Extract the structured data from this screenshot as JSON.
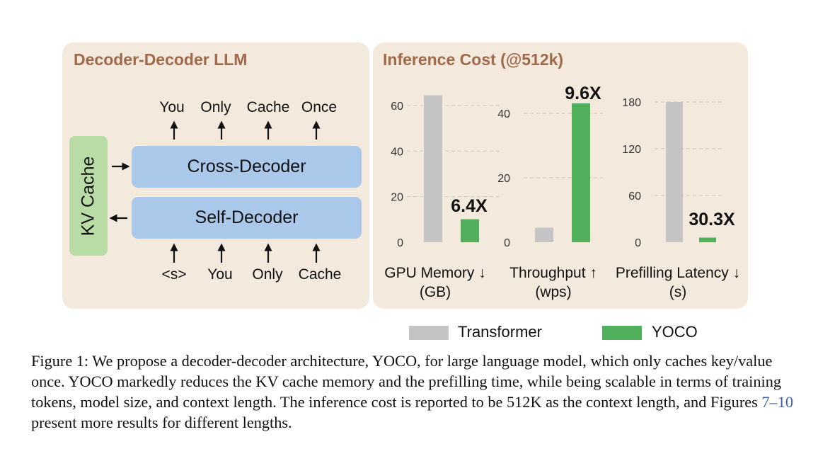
{
  "left_panel": {
    "title": "Decoder-Decoder LLM",
    "kv_cache_label": "KV Cache",
    "cross_decoder_label": "Cross-Decoder",
    "self_decoder_label": "Self-Decoder",
    "output_tokens": [
      "You",
      "Only",
      "Cache",
      "Once"
    ],
    "input_tokens": [
      "<s>",
      "You",
      "Only",
      "Cache"
    ]
  },
  "right_panel": {
    "title": "Inference Cost (@512k)"
  },
  "chart_data": [
    {
      "type": "bar",
      "xlabel_line1": "GPU Memory ↓",
      "xlabel_line2": "(GB)",
      "yticks": [
        0,
        20,
        40,
        60
      ],
      "ylim": [
        0,
        65
      ],
      "series": [
        {
          "name": "Transformer",
          "color": "#c4c4c4",
          "value": 64.5
        },
        {
          "name": "YOCO",
          "color": "#4faf5a",
          "value": 10.1
        }
      ],
      "annotation": "6.4X"
    },
    {
      "type": "bar",
      "xlabel_line1": "Throughput ↑",
      "xlabel_line2": "(wps)",
      "yticks": [
        0,
        20,
        40
      ],
      "ylim": [
        0,
        44
      ],
      "series": [
        {
          "name": "Transformer",
          "color": "#c4c4c4",
          "value": 4.5
        },
        {
          "name": "YOCO",
          "color": "#4faf5a",
          "value": 43.1
        }
      ],
      "annotation": "9.6X"
    },
    {
      "type": "bar",
      "xlabel_line1": "Prefilling Latency ↓",
      "xlabel_line2": "(s)",
      "yticks": [
        0,
        60,
        120,
        180
      ],
      "ylim": [
        0,
        180
      ],
      "series": [
        {
          "name": "Transformer",
          "color": "#c4c4c4",
          "value": 180
        },
        {
          "name": "YOCO",
          "color": "#4faf5a",
          "value": 5.9
        }
      ],
      "annotation": "30.3X"
    }
  ],
  "legend": [
    {
      "label": "Transformer",
      "color": "#c4c4c4"
    },
    {
      "label": "YOCO",
      "color": "#4faf5a"
    }
  ],
  "caption": {
    "part1": "Figure 1: We propose a decoder-decoder architecture, YOCO, for large language model, which only caches key/value once. YOCO markedly reduces the KV cache memory and the prefilling time, while being scalable in terms of training tokens, model size, and context length. The inference cost is reported to be 512K as the context length, and Figures ",
    "ref": "7–10",
    "part2": " present more results for different lengths."
  }
}
